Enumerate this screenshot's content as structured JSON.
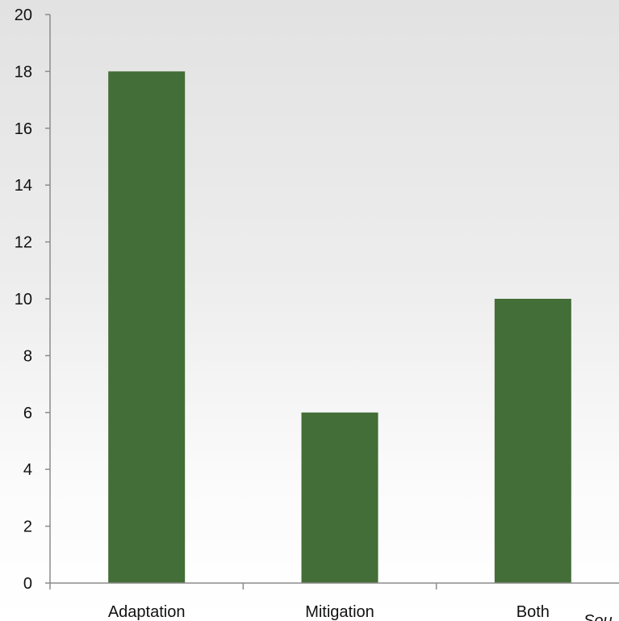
{
  "chart_data": {
    "type": "bar",
    "categories": [
      "Adaptation",
      "Mitigation",
      "Both"
    ],
    "values": [
      18,
      6,
      10
    ],
    "title": "",
    "xlabel": "",
    "ylabel": "",
    "ylim": [
      0,
      20
    ],
    "yticks": [
      0,
      2,
      4,
      6,
      8,
      10,
      12,
      14,
      16,
      18,
      20
    ],
    "grid": false,
    "legend": "none",
    "bar_color": "#436e37",
    "axis_color": "#8c8c8c"
  },
  "footnote": "Sou"
}
